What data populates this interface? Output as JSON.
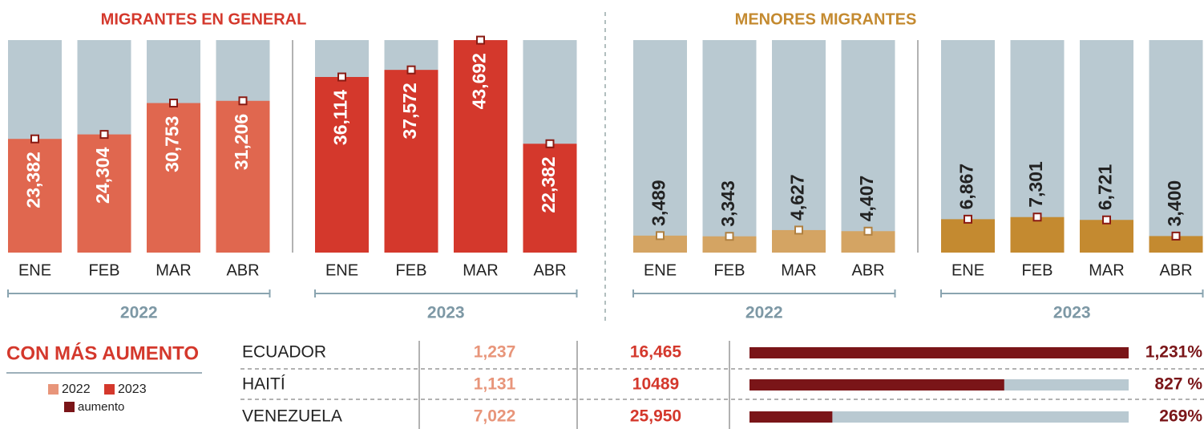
{
  "chart_data": [
    {
      "type": "bar",
      "title": "MIGRANTES EN GENERAL",
      "title_color": "#d4382c",
      "background_color": "#b9c9d1",
      "categories": [
        "ENE",
        "FEB",
        "MAR",
        "ABR"
      ],
      "ylim": [
        0,
        43700
      ],
      "label_inside": true,
      "series": [
        {
          "name": "2022",
          "color": "#e0674f",
          "values": [
            23382,
            24304,
            30753,
            31206
          ],
          "value_labels": [
            "23,382",
            "24,304",
            "30,753",
            "31,206"
          ]
        },
        {
          "name": "2023",
          "color": "#d4382c",
          "values": [
            36114,
            37572,
            43692,
            22382
          ],
          "value_labels": [
            "36,114",
            "37,572",
            "43,692",
            "22,382"
          ]
        }
      ]
    },
    {
      "type": "bar",
      "title": "MENORES MIGRANTES",
      "title_color": "#c48a30",
      "background_color": "#b9c9d1",
      "categories": [
        "ENE",
        "FEB",
        "MAR",
        "ABR"
      ],
      "ylim": [
        0,
        43700
      ],
      "label_inside": false,
      "series": [
        {
          "name": "2022",
          "color": "#d4a463",
          "values": [
            3489,
            3343,
            4627,
            4407
          ],
          "value_labels": [
            "3,489",
            "3,343",
            "4,627",
            "4,407"
          ]
        },
        {
          "name": "2023",
          "color": "#c48a30",
          "values": [
            6867,
            7301,
            6721,
            3400
          ],
          "value_labels": [
            "6,867",
            "7,301",
            "6,721",
            "3,400"
          ]
        }
      ]
    },
    {
      "type": "table_bar",
      "title": "CON MÁS AUMENTO",
      "background_color": "#b9c9d1",
      "categories": [
        "ECUADOR",
        "HAITÍ",
        "VENEZUELA"
      ],
      "xlim": [
        0,
        1231
      ],
      "series": [
        {
          "name": "2022",
          "color": "#e8957a",
          "values": [
            1237,
            1131,
            7022
          ],
          "value_labels": [
            "1,237",
            "1,131",
            "7,022"
          ]
        },
        {
          "name": "2023",
          "color": "#d4382c",
          "values": [
            16465,
            10489,
            25950
          ],
          "value_labels": [
            "16,465",
            "10489",
            "25,950"
          ]
        },
        {
          "name": "aumento",
          "color": "#7a1518",
          "values": [
            1231,
            827,
            269
          ],
          "value_labels": [
            "1,231%",
            "827 %",
            "269%"
          ]
        }
      ]
    }
  ]
}
